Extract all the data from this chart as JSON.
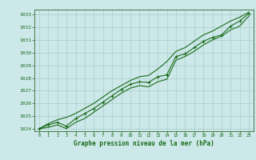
{
  "title": "Graphe pression niveau de la mer (hPa)",
  "x_values": [
    0,
    1,
    2,
    3,
    4,
    5,
    6,
    7,
    8,
    9,
    10,
    11,
    12,
    13,
    14,
    15,
    16,
    17,
    18,
    19,
    20,
    21,
    22,
    23
  ],
  "main_line": [
    1024.0,
    1024.3,
    1024.5,
    1024.2,
    1024.8,
    1025.2,
    1025.6,
    1026.1,
    1026.6,
    1027.1,
    1027.5,
    1027.7,
    1027.65,
    1028.1,
    1028.25,
    1029.7,
    1029.9,
    1030.4,
    1030.9,
    1031.2,
    1031.4,
    1032.1,
    1032.5,
    1033.1
  ],
  "upper_line": [
    1024.0,
    1024.4,
    1024.7,
    1024.9,
    1025.2,
    1025.6,
    1026.0,
    1026.5,
    1027.0,
    1027.4,
    1027.8,
    1028.1,
    1028.2,
    1028.7,
    1029.3,
    1030.1,
    1030.4,
    1030.9,
    1031.4,
    1031.7,
    1032.1,
    1032.5,
    1032.8,
    1033.2
  ],
  "lower_line": [
    1024.0,
    1024.1,
    1024.3,
    1024.0,
    1024.5,
    1024.8,
    1025.3,
    1025.8,
    1026.3,
    1026.8,
    1027.2,
    1027.4,
    1027.3,
    1027.7,
    1027.9,
    1029.4,
    1029.7,
    1030.1,
    1030.6,
    1031.0,
    1031.3,
    1031.8,
    1032.1,
    1032.9
  ],
  "scatter_x": [
    0,
    1,
    2,
    3,
    4,
    5,
    6,
    7,
    8,
    9,
    10,
    11,
    12,
    13,
    14,
    15,
    16,
    17,
    18,
    19,
    20,
    21,
    22,
    23
  ],
  "scatter_y": [
    1024.0,
    1024.3,
    1024.5,
    1024.2,
    1024.8,
    1025.2,
    1025.6,
    1026.1,
    1026.6,
    1027.1,
    1027.5,
    1027.7,
    1027.65,
    1028.1,
    1028.25,
    1029.7,
    1029.9,
    1030.4,
    1030.9,
    1031.2,
    1031.4,
    1032.1,
    1032.5,
    1033.1
  ],
  "ylim": [
    1023.8,
    1033.4
  ],
  "xlim": [
    -0.5,
    23.5
  ],
  "yticks": [
    1024,
    1025,
    1026,
    1027,
    1028,
    1029,
    1030,
    1031,
    1032,
    1033
  ],
  "xticks": [
    0,
    1,
    2,
    3,
    4,
    5,
    6,
    7,
    8,
    9,
    10,
    11,
    12,
    13,
    14,
    15,
    16,
    17,
    18,
    19,
    20,
    21,
    22,
    23
  ],
  "line_color": "#1a6b1a",
  "bg_color": "#cce8e8",
  "grid_color": "#aacccc",
  "title_color": "#1a6b1a",
  "tick_color": "#1a6b1a",
  "axis_color": "#336633",
  "marker_color": "#1a6b1a"
}
